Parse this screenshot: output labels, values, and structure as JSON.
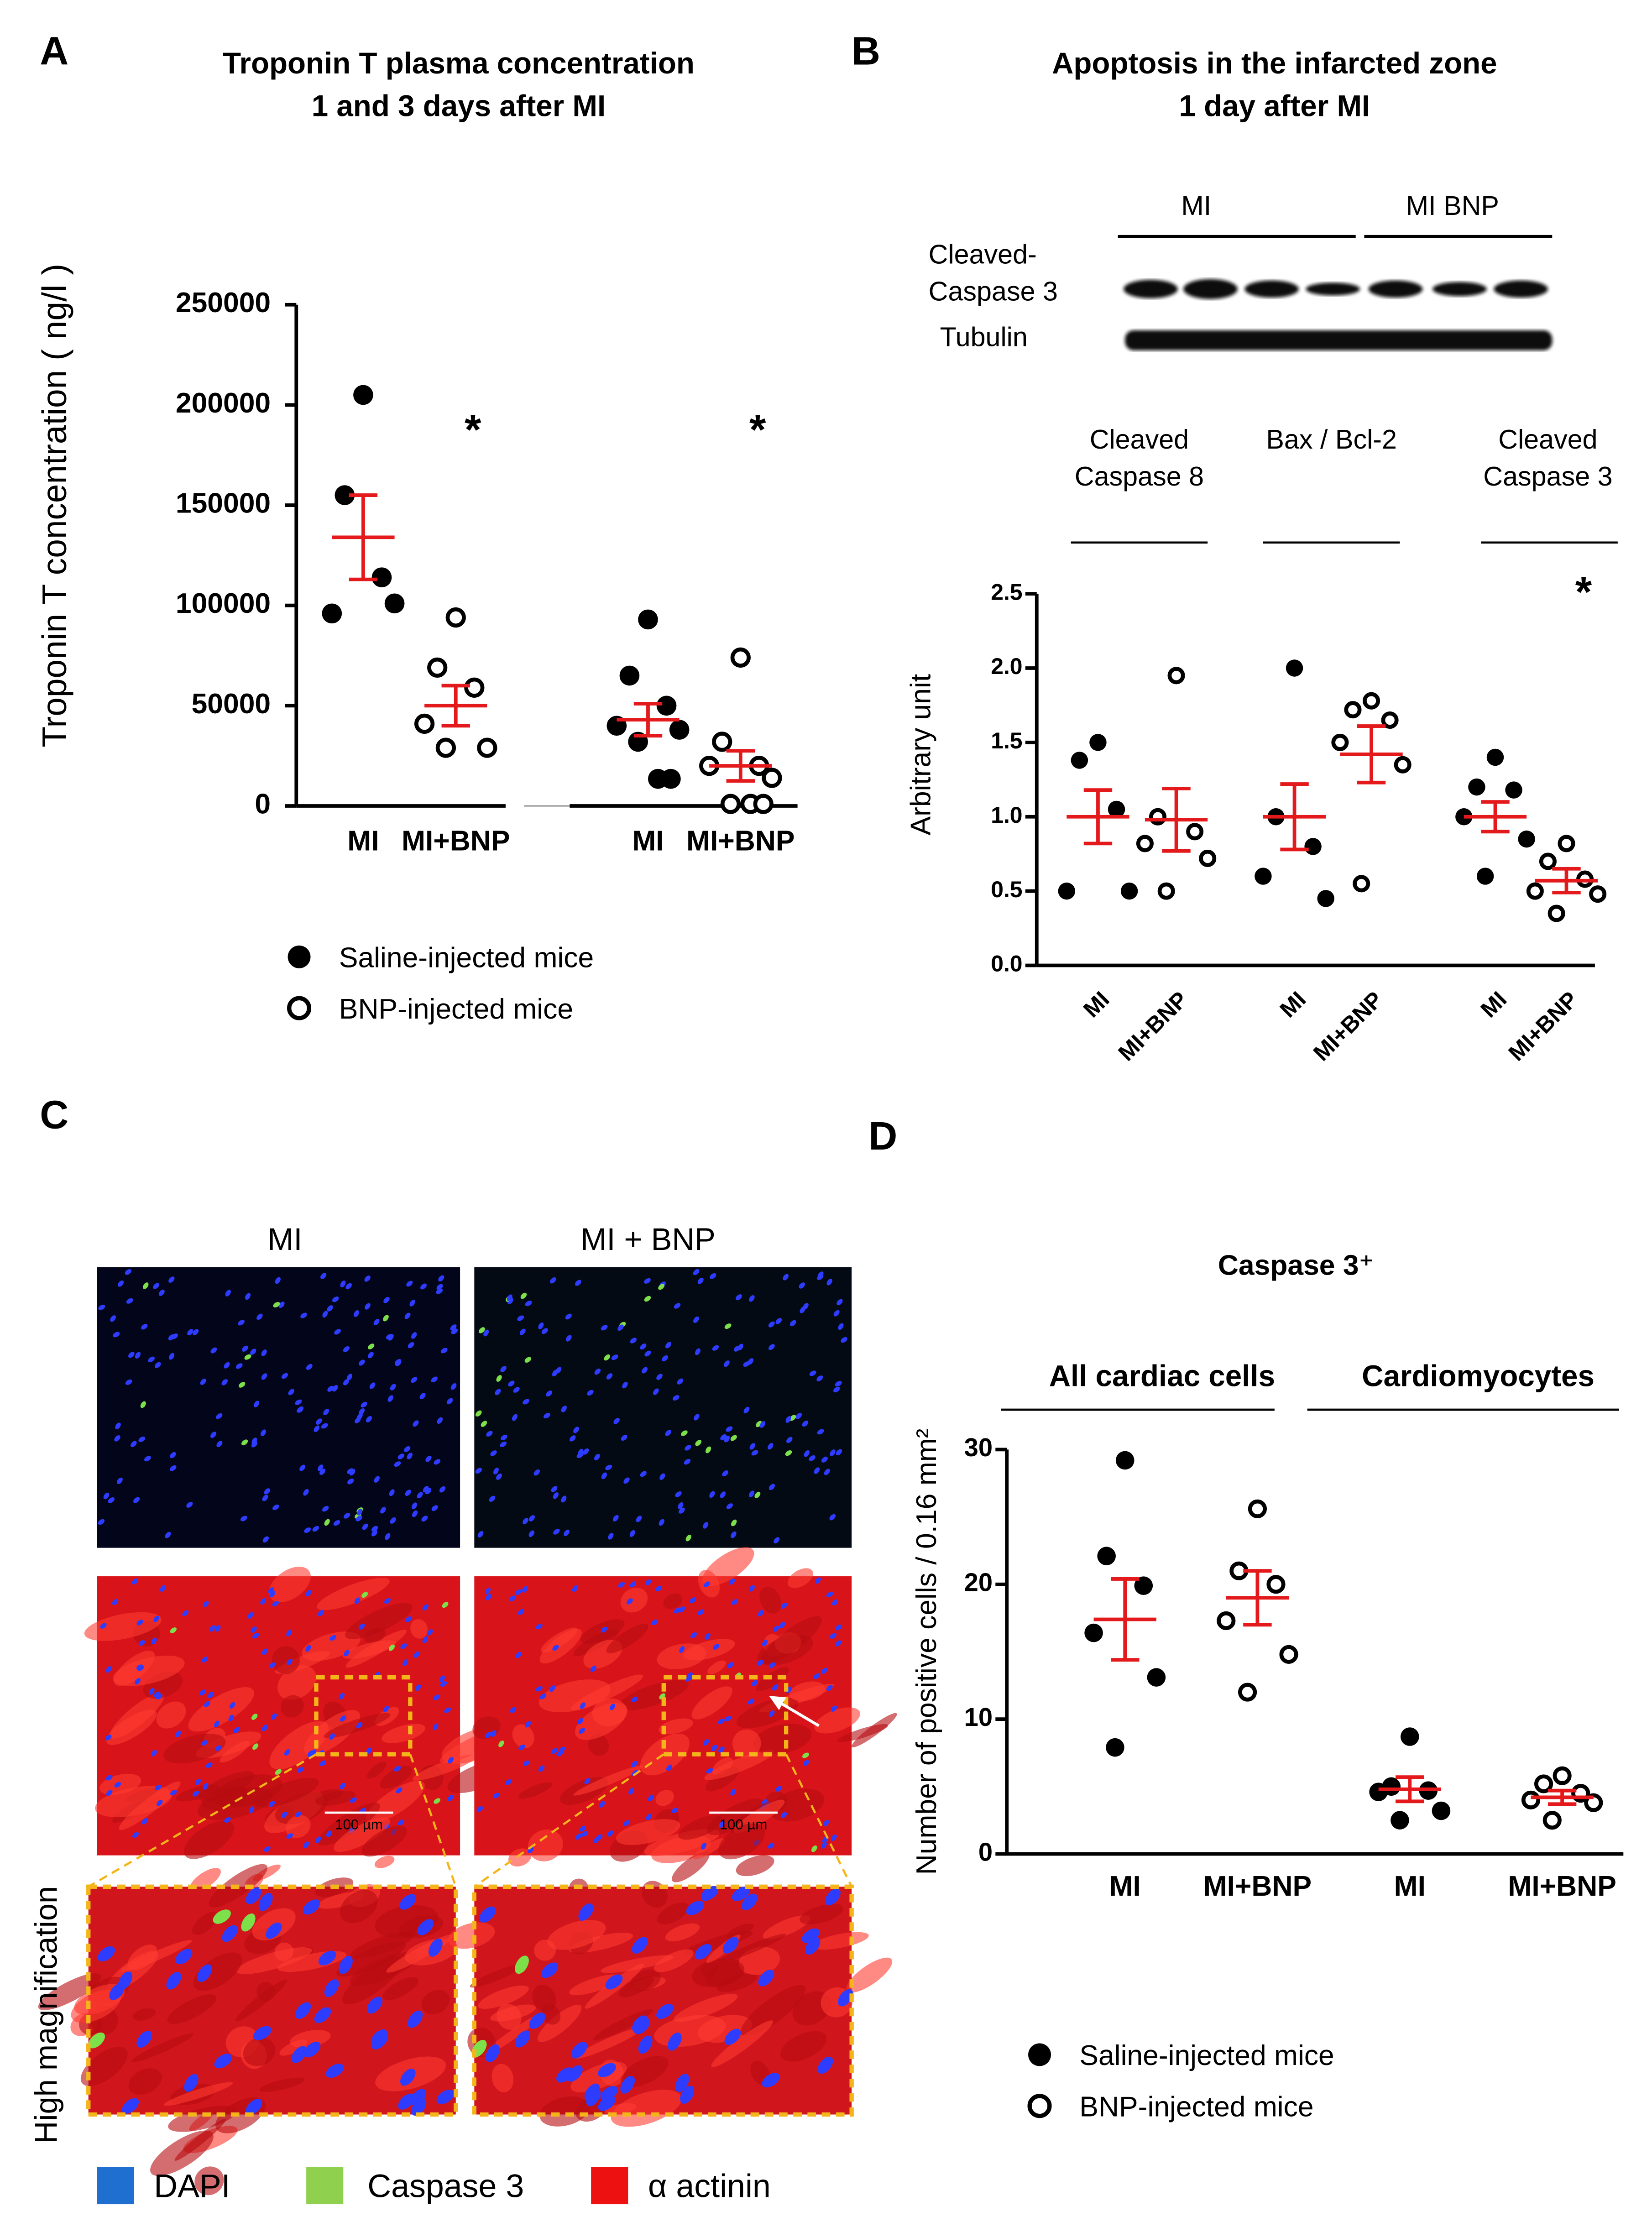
{
  "panel_labels": [
    "A",
    "B",
    "C",
    "D"
  ],
  "blot": {
    "group_labels": [
      "MI",
      "MI BNP"
    ],
    "row_labels": [
      [
        "Cleaved-",
        "Caspase 3"
      ],
      [
        "Tubulin"
      ]
    ]
  },
  "micrographs": {
    "column_labels": [
      "MI",
      "MI + BNP"
    ],
    "scale_bars": [
      "100 µm",
      "100 µm"
    ],
    "row_label": "High magnification",
    "legend": [
      {
        "name": "DAPI",
        "color": "#1f6fd0"
      },
      {
        "name": "Caspase 3",
        "color": "#8fd14f"
      },
      {
        "name": "α actinin",
        "color": "#ee1111"
      }
    ]
  },
  "chart_data": [
    {
      "type": "scatter",
      "title": [
        "Troponin T plasma concentration",
        "1 and 3 days after MI"
      ],
      "ylabel": "Troponin T concentration ( ng/l )",
      "ylim": [
        0,
        250000
      ],
      "yticks": [
        0,
        50000,
        100000,
        150000,
        200000,
        250000
      ],
      "categories": [
        "MI",
        "MI+BNP",
        "MI",
        "MI+BNP"
      ],
      "markers": [
        "filled",
        "open",
        "filled",
        "open"
      ],
      "points": [
        [
          205000,
          155000,
          114000,
          96000,
          101000
        ],
        [
          94000,
          69000,
          59000,
          41000,
          29000,
          29000
        ],
        [
          93000,
          65000,
          50000,
          40000,
          38000,
          32000,
          13500,
          13500
        ],
        [
          74000,
          32000,
          20000,
          20000,
          14000,
          1000,
          1000,
          1000
        ]
      ],
      "means": [
        134000,
        50000,
        43000,
        20000
      ],
      "sems": [
        21000,
        10000,
        8000,
        7500
      ],
      "significance": [
        null,
        "*",
        null,
        "*"
      ],
      "stat_color": "#e3191c",
      "legend": [
        {
          "name": "Saline-injected mice",
          "marker": "filled"
        },
        {
          "name": "BNP-injected mice",
          "marker": "open"
        }
      ]
    },
    {
      "type": "scatter",
      "title": [
        "Apoptosis in the infarcted zone",
        "1 day after MI"
      ],
      "ylabel": "Arbitrary unit",
      "ylim": [
        0,
        2.5
      ],
      "yticks": [
        {
          "value": 0,
          "label": "0.0"
        },
        {
          "value": 0.5,
          "label": "0.5"
        },
        {
          "value": 1,
          "label": "1.0"
        },
        {
          "value": 1.5,
          "label": "1.5"
        },
        {
          "value": 2,
          "label": "2.0"
        },
        {
          "value": 2.5,
          "label": "2.5"
        }
      ],
      "group_labels": [
        [
          "Cleaved",
          "Caspase 8"
        ],
        [
          "Bax  / Bcl-2"
        ],
        [
          "Cleaved",
          "Caspase 3"
        ]
      ],
      "categories": [
        "MI",
        "MI+BNP",
        "MI",
        "MI+BNP",
        "MI",
        "MI+BNP"
      ],
      "markers": [
        "filled",
        "open",
        "filled",
        "open",
        "filled",
        "open"
      ],
      "points": [
        [
          1.5,
          1.38,
          1.05,
          0.5,
          0.5
        ],
        [
          1.95,
          1.0,
          0.9,
          0.82,
          0.72,
          0.5
        ],
        [
          2.0,
          1.0,
          0.8,
          0.6,
          0.45
        ],
        [
          1.78,
          1.72,
          1.65,
          1.5,
          1.35,
          0.55
        ],
        [
          1.4,
          1.2,
          1.18,
          1.0,
          0.85,
          0.6
        ],
        [
          0.82,
          0.7,
          0.58,
          0.5,
          0.48,
          0.35
        ]
      ],
      "means": [
        1.0,
        0.98,
        1.0,
        1.42,
        1.0,
        0.57
      ],
      "sems": [
        0.18,
        0.21,
        0.22,
        0.19,
        0.1,
        0.08
      ],
      "significance": [
        null,
        null,
        null,
        null,
        null,
        "*"
      ],
      "stat_color": "#e3191c"
    },
    {
      "type": "scatter",
      "title": [
        "Caspase 3⁺"
      ],
      "ylabel": "Number of positive cells / 0.16 mm²",
      "ylim": [
        0,
        30
      ],
      "yticks": [
        0,
        10,
        20,
        30
      ],
      "group_labels": [
        [
          "All cardiac cells"
        ],
        [
          "Cardiomyocytes"
        ]
      ],
      "categories": [
        "MI",
        "MI+BNP",
        "MI",
        "MI+BNP"
      ],
      "markers": [
        "filled",
        "open",
        "filled",
        "open"
      ],
      "points": [
        [
          29.2,
          22.1,
          19.9,
          16.4,
          13.1,
          7.9
        ],
        [
          25.6,
          21.0,
          20.0,
          17.3,
          14.8,
          12.0
        ],
        [
          8.7,
          5.0,
          4.7,
          4.6,
          3.2,
          2.5
        ],
        [
          5.8,
          5.2,
          4.5,
          4.0,
          3.8,
          2.5
        ]
      ],
      "means": [
        17.4,
        19.0,
        4.8,
        4.2
      ],
      "sems": [
        3.0,
        2.0,
        0.9,
        0.5
      ],
      "significance": [
        null,
        null,
        null,
        null
      ],
      "stat_color": "#e3191c",
      "legend": [
        {
          "name": "Saline-injected mice",
          "marker": "filled"
        },
        {
          "name": "BNP-injected mice",
          "marker": "open"
        }
      ]
    }
  ]
}
